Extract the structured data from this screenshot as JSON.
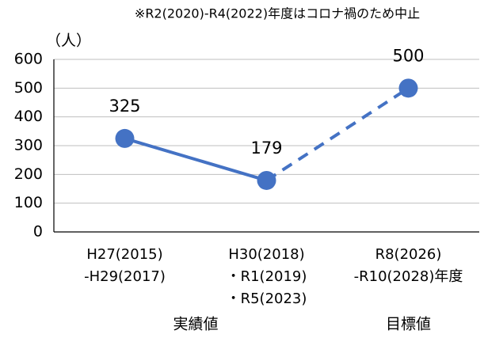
{
  "chart_data": {
    "type": "line",
    "annotation": "※R2(2020)-R4(2022)年度はコロナ禍のため中止",
    "y_label": "（人）",
    "categories": [
      [
        "H27(2015)",
        "-H29(2017)"
      ],
      [
        "H30(2018)",
        "・R1(2019)",
        "・R5(2023)"
      ],
      [
        "R8(2026)",
        "-R10(2028)年度"
      ]
    ],
    "values": [
      325,
      179,
      500
    ],
    "dashed_segments": [
      1
    ],
    "group_labels": [
      "実績値",
      "目標値"
    ],
    "color": "#4472c4",
    "ylim": [
      0,
      600
    ],
    "yticks": [
      0,
      100,
      200,
      300,
      400,
      500,
      600
    ],
    "grid": true
  }
}
